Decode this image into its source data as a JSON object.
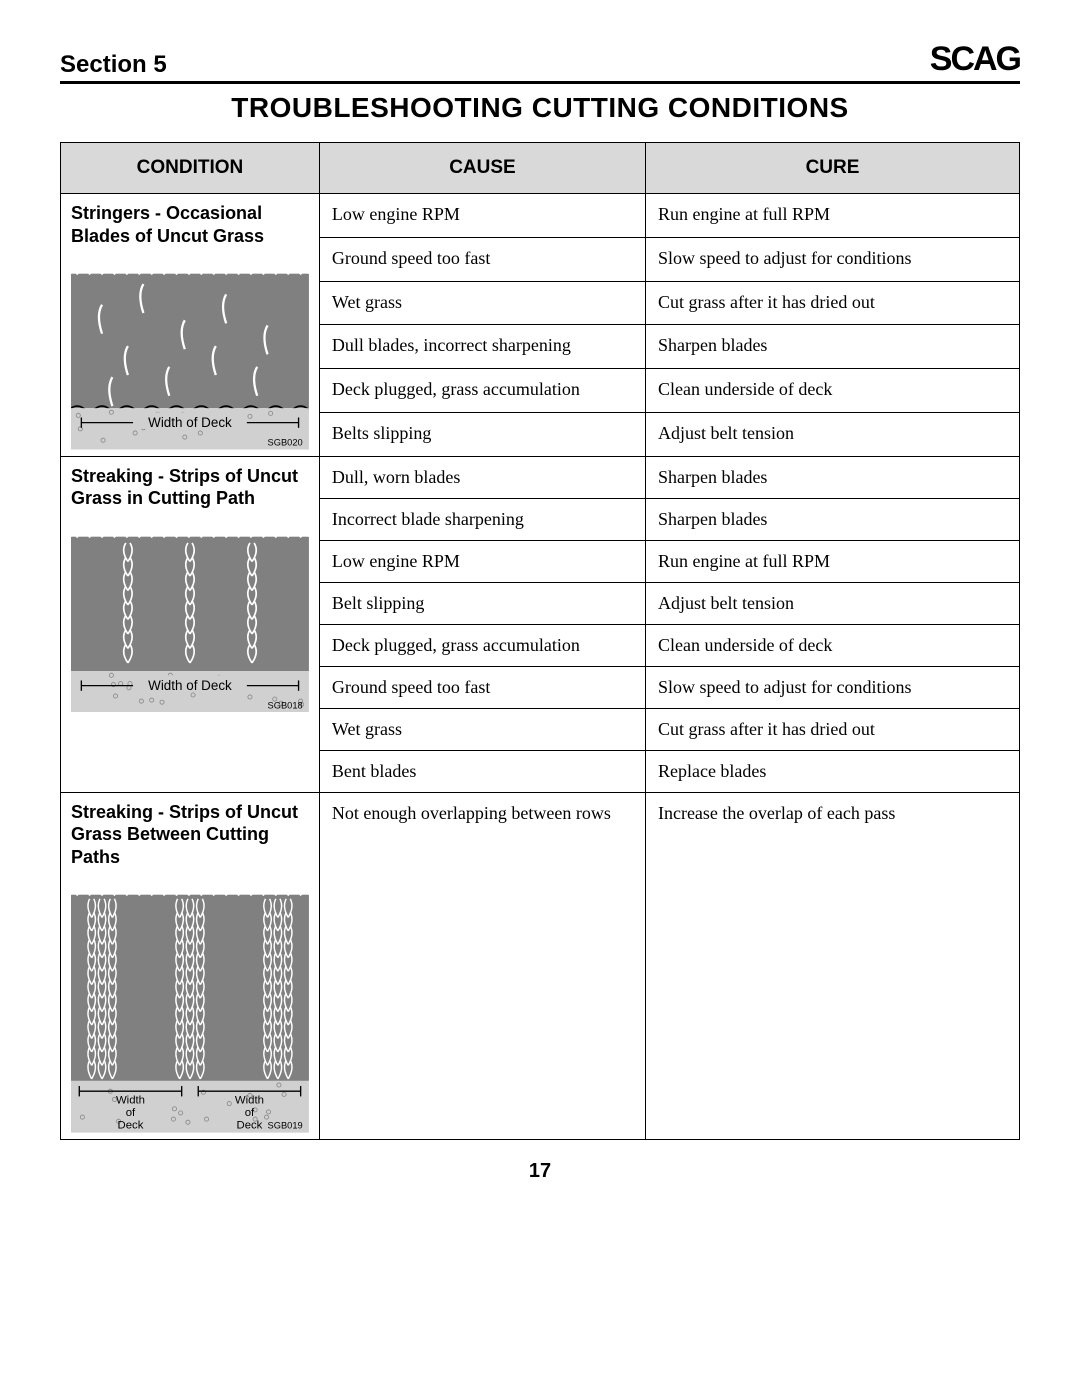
{
  "header": {
    "section_label": "Section 5",
    "brand": "SCAG"
  },
  "title": "TROUBLESHOOTING CUTTING CONDITIONS",
  "columns": [
    "CONDITION",
    "CAUSE",
    "CURE"
  ],
  "page_number": "17",
  "colors": {
    "header_bg": "#d9d9d9",
    "illus_dark": "#808080",
    "illus_light": "#d0d0d0",
    "border": "#000000"
  },
  "groups": [
    {
      "condition_title": "Stringers - Occasional Blades of Uncut Grass",
      "illus_code": "SGB020",
      "illus_caption": "Width of Deck",
      "rows": [
        {
          "cause": "Low engine RPM",
          "cure": "Run engine at full RPM"
        },
        {
          "cause": "Ground speed too fast",
          "cure": "Slow speed to adjust for conditions"
        },
        {
          "cause": "Wet grass",
          "cure": "Cut grass after it has dried out"
        },
        {
          "cause": "Dull blades, incorrect sharpening",
          "cure": "Sharpen blades"
        },
        {
          "cause": "Deck plugged, grass accumulation",
          "cure": "Clean underside of deck"
        },
        {
          "cause": "Belts slipping",
          "cure": "Adjust belt tension"
        }
      ]
    },
    {
      "condition_title": "Streaking - Strips of Uncut Grass in Cutting Path",
      "illus_code": "SGB018",
      "illus_caption": "Width of Deck",
      "rows": [
        {
          "cause": "Dull, worn blades",
          "cure": "Sharpen blades"
        },
        {
          "cause": "Incorrect blade sharpening",
          "cure": "Sharpen blades"
        },
        {
          "cause": "Low engine RPM",
          "cure": "Run engine at full RPM"
        },
        {
          "cause": "Belt slipping",
          "cure": "Adjust belt tension"
        },
        {
          "cause": "Deck plugged, grass accumulation",
          "cure": "Clean underside of deck"
        },
        {
          "cause": "Ground speed too fast",
          "cure": "Slow speed to adjust for conditions"
        },
        {
          "cause": "Wet grass",
          "cure": "Cut grass after it has dried out"
        },
        {
          "cause": "Bent blades",
          "cure": "Replace blades"
        }
      ]
    },
    {
      "condition_title": "Streaking - Strips of Uncut Grass Between Cutting Paths",
      "illus_code": "SGB019",
      "illus_caption": "Width of Deck",
      "rows": [
        {
          "cause": "Not enough overlapping between rows",
          "cure": "Increase the overlap of each pass"
        }
      ]
    }
  ]
}
